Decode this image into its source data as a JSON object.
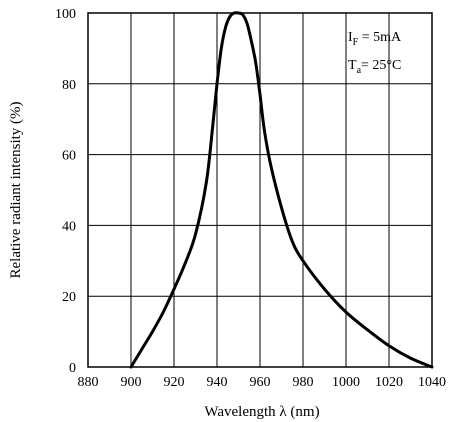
{
  "chart_data": {
    "type": "line",
    "title": "",
    "xlabel": "Wavelength  λ (nm)",
    "ylabel": "Relative radiant intensity (%)",
    "xlim": [
      880,
      1040
    ],
    "ylim": [
      0,
      100
    ],
    "x_ticks": [
      "880",
      "900",
      "920",
      "940",
      "960",
      "980",
      "1000",
      "1020",
      "1040"
    ],
    "y_ticks": [
      "0",
      "20",
      "40",
      "60",
      "80",
      "100"
    ],
    "grid": true,
    "legend": "none",
    "annotations": {
      "condition1_main": "I",
      "condition1_sub": "F",
      "condition1_rest": " = 5mA",
      "condition2_main": "T",
      "condition2_sub": "a",
      "condition2_rest": "= 25°C"
    },
    "series": [
      {
        "x": [
          900,
          905,
          910,
          915,
          920,
          925,
          930,
          935,
          938,
          940,
          942,
          944,
          946,
          948,
          950,
          952,
          954,
          956,
          958,
          960,
          962,
          965,
          970,
          975,
          980,
          990,
          1000,
          1010,
          1020,
          1030,
          1040
        ],
        "y": [
          0,
          5,
          10,
          15.5,
          22,
          29,
          37.5,
          52,
          68,
          80,
          90,
          96,
          99,
          100,
          100,
          99.5,
          97,
          92,
          86,
          77,
          67,
          57,
          45,
          35.5,
          30,
          22,
          15.5,
          10.5,
          6,
          2.5,
          0
        ]
      }
    ]
  }
}
